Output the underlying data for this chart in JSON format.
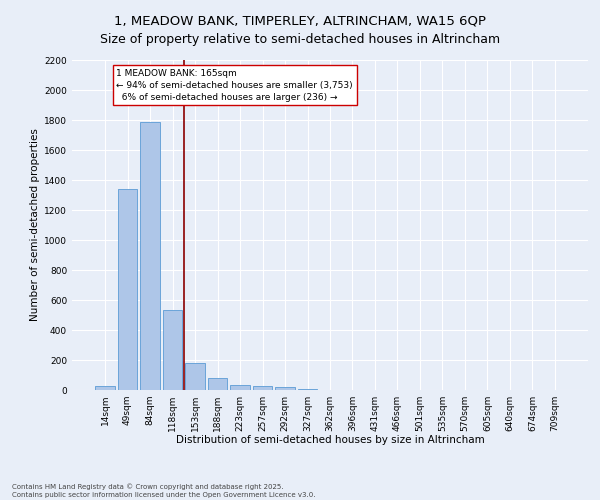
{
  "title": "1, MEADOW BANK, TIMPERLEY, ALTRINCHAM, WA15 6QP",
  "subtitle": "Size of property relative to semi-detached houses in Altrincham",
  "xlabel": "Distribution of semi-detached houses by size in Altrincham",
  "ylabel": "Number of semi-detached properties",
  "categories": [
    "14sqm",
    "49sqm",
    "84sqm",
    "118sqm",
    "153sqm",
    "188sqm",
    "223sqm",
    "257sqm",
    "292sqm",
    "327sqm",
    "362sqm",
    "396sqm",
    "431sqm",
    "466sqm",
    "501sqm",
    "535sqm",
    "570sqm",
    "605sqm",
    "640sqm",
    "674sqm",
    "709sqm"
  ],
  "values": [
    30,
    1340,
    1790,
    535,
    180,
    80,
    35,
    25,
    20,
    10,
    0,
    0,
    0,
    0,
    0,
    0,
    0,
    0,
    0,
    0,
    0
  ],
  "bar_color": "#aec6e8",
  "bar_edge_color": "#5b9bd5",
  "vline_x_index": 3.5,
  "vline_color": "#8b0000",
  "annotation_text": "1 MEADOW BANK: 165sqm\n← 94% of semi-detached houses are smaller (3,753)\n  6% of semi-detached houses are larger (236) →",
  "annotation_box_color": "#ffffff",
  "annotation_box_edge": "#cc0000",
  "footer_line1": "Contains HM Land Registry data © Crown copyright and database right 2025.",
  "footer_line2": "Contains public sector information licensed under the Open Government Licence v3.0.",
  "ylim": [
    0,
    2200
  ],
  "yticks": [
    0,
    200,
    400,
    600,
    800,
    1000,
    1200,
    1400,
    1600,
    1800,
    2000,
    2200
  ],
  "bg_color": "#e8eef8",
  "grid_color": "#ffffff",
  "title_fontsize": 9.5,
  "axis_label_fontsize": 7.5,
  "tick_fontsize": 6.5,
  "annotation_fontsize": 6.5,
  "footer_fontsize": 5.0
}
